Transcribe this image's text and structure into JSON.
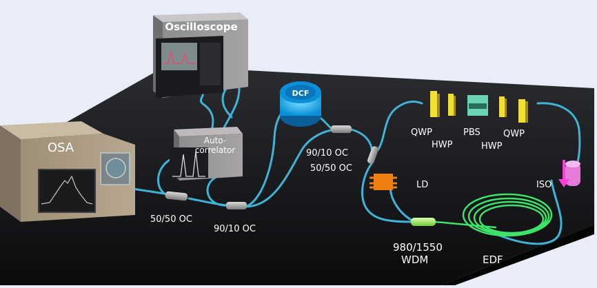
{
  "instruments": {
    "oscilloscope": "Oscilloscope",
    "osa": "OSA",
    "autocorrelator_line1": "Auto-",
    "autocorrelator_line2": "correlator",
    "dcf": "DCF"
  },
  "labels": {
    "coupler_5050_left": "50/50 OC",
    "coupler_9010_bottom": "90/10 OC",
    "coupler_9010_right": "90/10 OC",
    "coupler_5050_right": "50/50 OC",
    "qwp_left": "QWP",
    "pbs": "PBS",
    "qwp_right": "QWP",
    "hwp_left": "HWP",
    "hwp_right": "HWP",
    "ld": "LD",
    "iso": "ISO",
    "wdm_line1": "980/1550",
    "wdm_line2": "WDM",
    "edf": "EDF"
  },
  "colors": {
    "background": "#e9edf8",
    "table": "#111214",
    "fiber": "#3fb4d6",
    "edf_fiber": "#3ee36a",
    "dcf": "#1aa8ec",
    "ld": "#f07f12",
    "waveplate": "#f2df35",
    "isolator": "#e57bd8",
    "label": "#ffffff"
  }
}
